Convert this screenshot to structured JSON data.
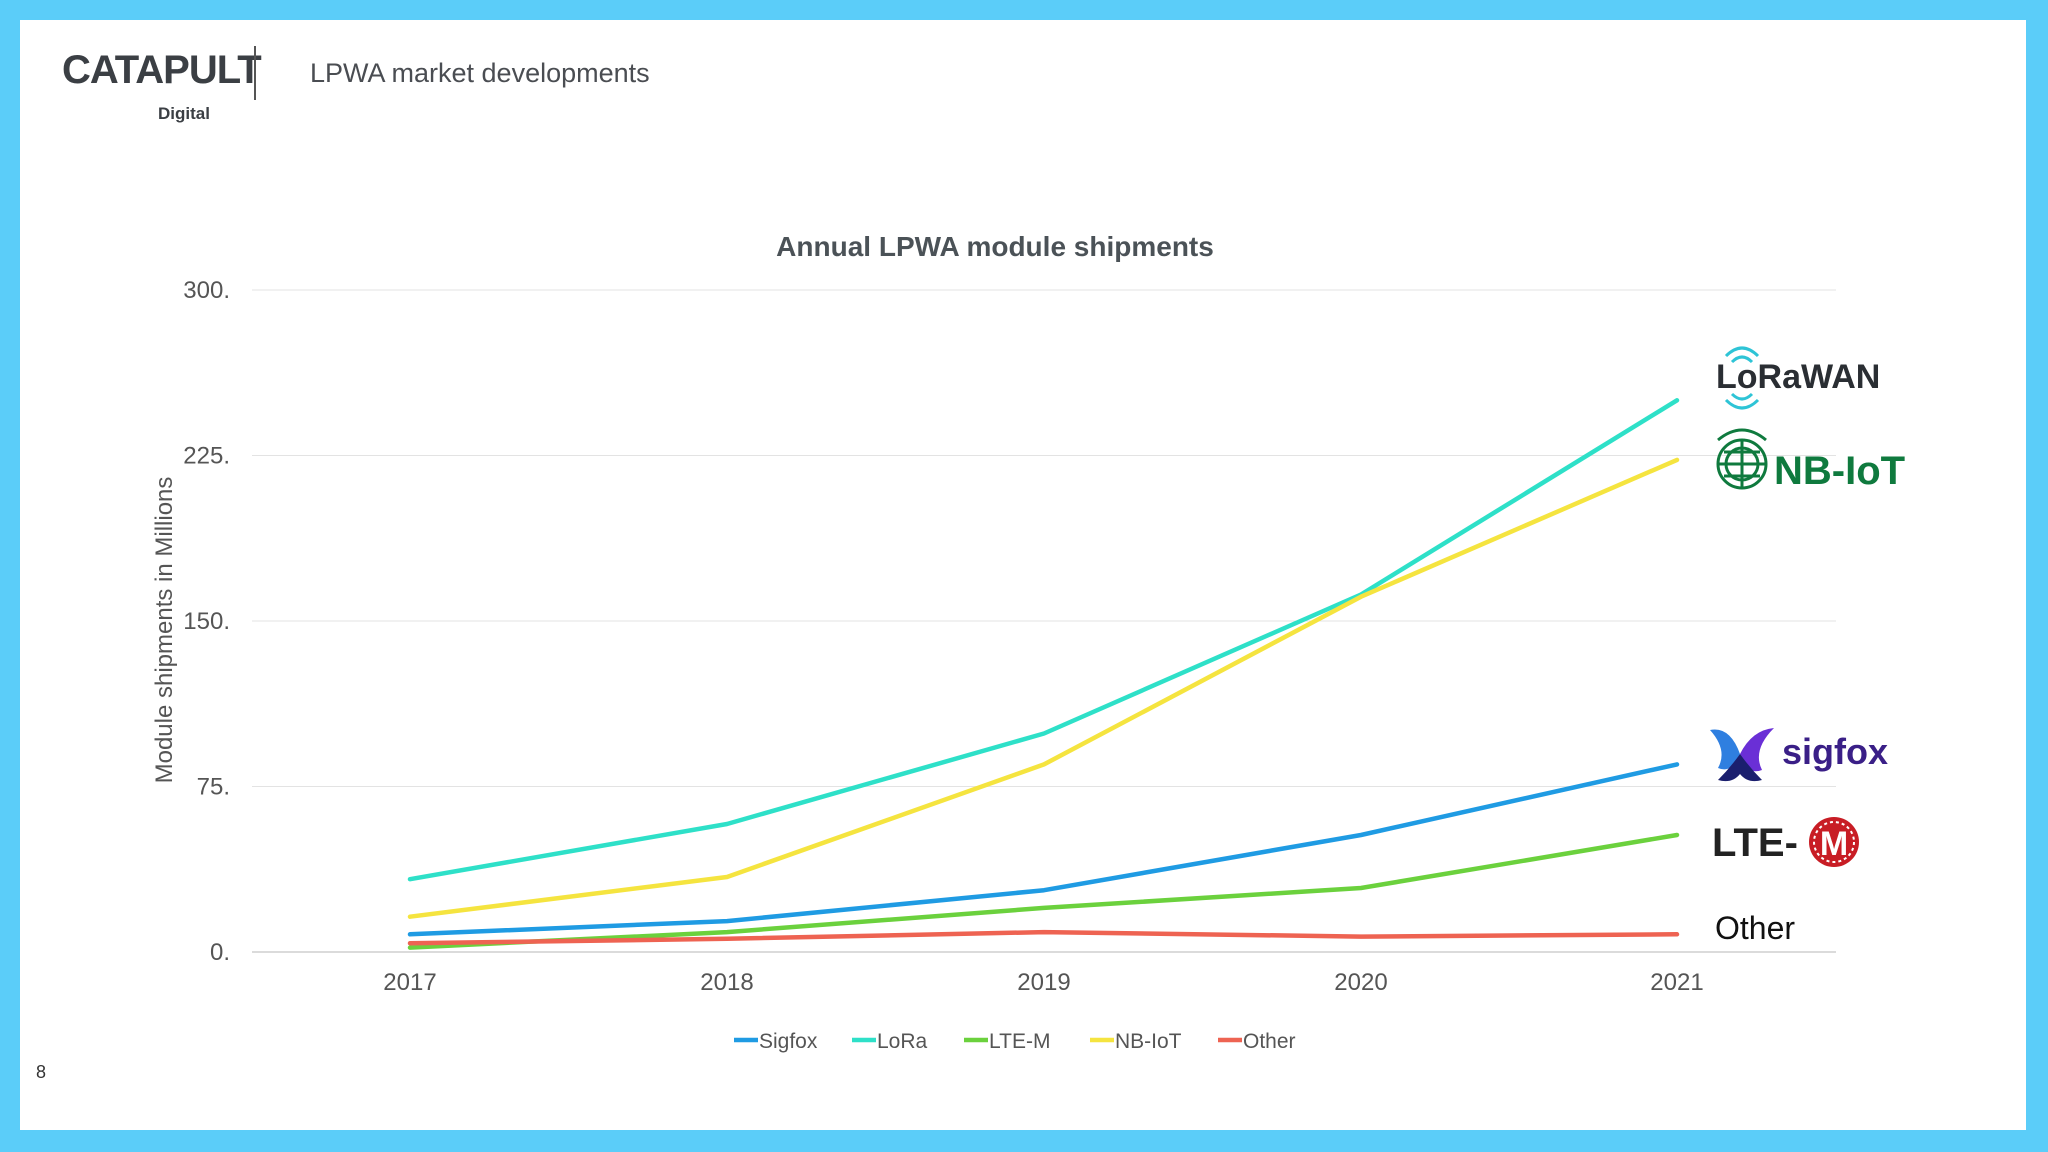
{
  "header": {
    "logo_main": "CATAPULT",
    "logo_sub": "Digital",
    "title": "LPWA market developments"
  },
  "page_number": "8",
  "chart_data": {
    "type": "line",
    "title": "Annual LPWA module shipments",
    "xlabel": "",
    "ylabel": "Module shipments  in Millions",
    "categories": [
      "2017",
      "2018",
      "2019",
      "2020",
      "2021"
    ],
    "yticks": [
      "0.",
      "75.",
      "150.",
      "225.",
      "300."
    ],
    "ylim": [
      0,
      300
    ],
    "grid": true,
    "legend_position": "bottom",
    "series": [
      {
        "name": "Sigfox",
        "color": "#1f9be3",
        "values": [
          8,
          14,
          28,
          53,
          85
        ]
      },
      {
        "name": "LoRa",
        "color": "#2ee0c8",
        "values": [
          33,
          58,
          99,
          162,
          250
        ]
      },
      {
        "name": "LTE-M",
        "color": "#6bd13d",
        "values": [
          2,
          9,
          20,
          29,
          53
        ]
      },
      {
        "name": "NB-IoT",
        "color": "#f5e43f",
        "values": [
          16,
          34,
          85,
          161,
          223
        ]
      },
      {
        "name": "Other",
        "color": "#ee6352",
        "values": [
          4,
          6,
          9,
          7,
          8
        ]
      }
    ],
    "end_labels": [
      {
        "text": "LoRaWAN",
        "series": "LoRa",
        "color": "#2a2e33",
        "icon": "lorawan-logo"
      },
      {
        "text": "NB-IoT",
        "series": "NB-IoT",
        "color": "#0f7a3e",
        "icon": "nbiot-globe-logo"
      },
      {
        "text": "sigfox",
        "series": "Sigfox",
        "color": "#3a1f87",
        "icon": "sigfox-butterfly-logo"
      },
      {
        "text": "LTE-",
        "series": "LTE-M",
        "color": "#222222",
        "icon": "lte-m-badge-logo",
        "badge_letter": "M"
      },
      {
        "text": "Other",
        "series": "Other",
        "color": "#111111",
        "icon": ""
      }
    ]
  }
}
